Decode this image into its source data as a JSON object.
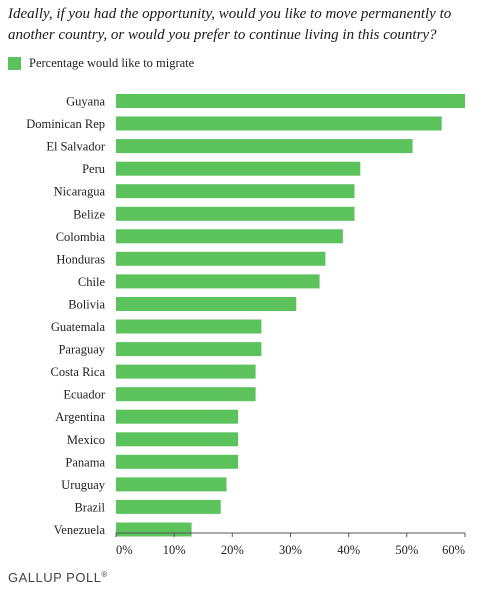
{
  "colors": {
    "bar": "#5cc25c",
    "axis": "#555555",
    "text": "#222222"
  },
  "chart_data": {
    "type": "bar",
    "orientation": "horizontal",
    "title": "Ideally, if you had the opportunity, would you like to move permanently to another country, or would you prefer to continue living in this country?",
    "legend": {
      "position": "top-left",
      "entries": [
        "Percentage would like to migrate"
      ]
    },
    "categories": [
      "Guyana",
      "Dominican Rep",
      "El Salvador",
      "Peru",
      "Nicaragua",
      "Belize",
      "Colombia",
      "Honduras",
      "Chile",
      "Bolivia",
      "Guatemala",
      "Paraguay",
      "Costa Rica",
      "Ecuador",
      "Argentina",
      "Mexico",
      "Panama",
      "Uruguay",
      "Brazil",
      "Venezuela"
    ],
    "series": [
      {
        "name": "Percentage would like to migrate",
        "values": [
          60,
          56,
          51,
          42,
          41,
          41,
          39,
          36,
          35,
          31,
          25,
          25,
          24,
          24,
          21,
          21,
          21,
          19,
          18,
          13
        ]
      }
    ],
    "xlim": [
      0,
      60
    ],
    "ticks": [
      0,
      10,
      20,
      30,
      40,
      50,
      60
    ],
    "tick_labels": [
      "0%",
      "10%",
      "20%",
      "30%",
      "40%",
      "50%",
      "60%"
    ],
    "grid": false
  },
  "footer": {
    "brand": "GALLUP POLL",
    "mark": "®"
  }
}
